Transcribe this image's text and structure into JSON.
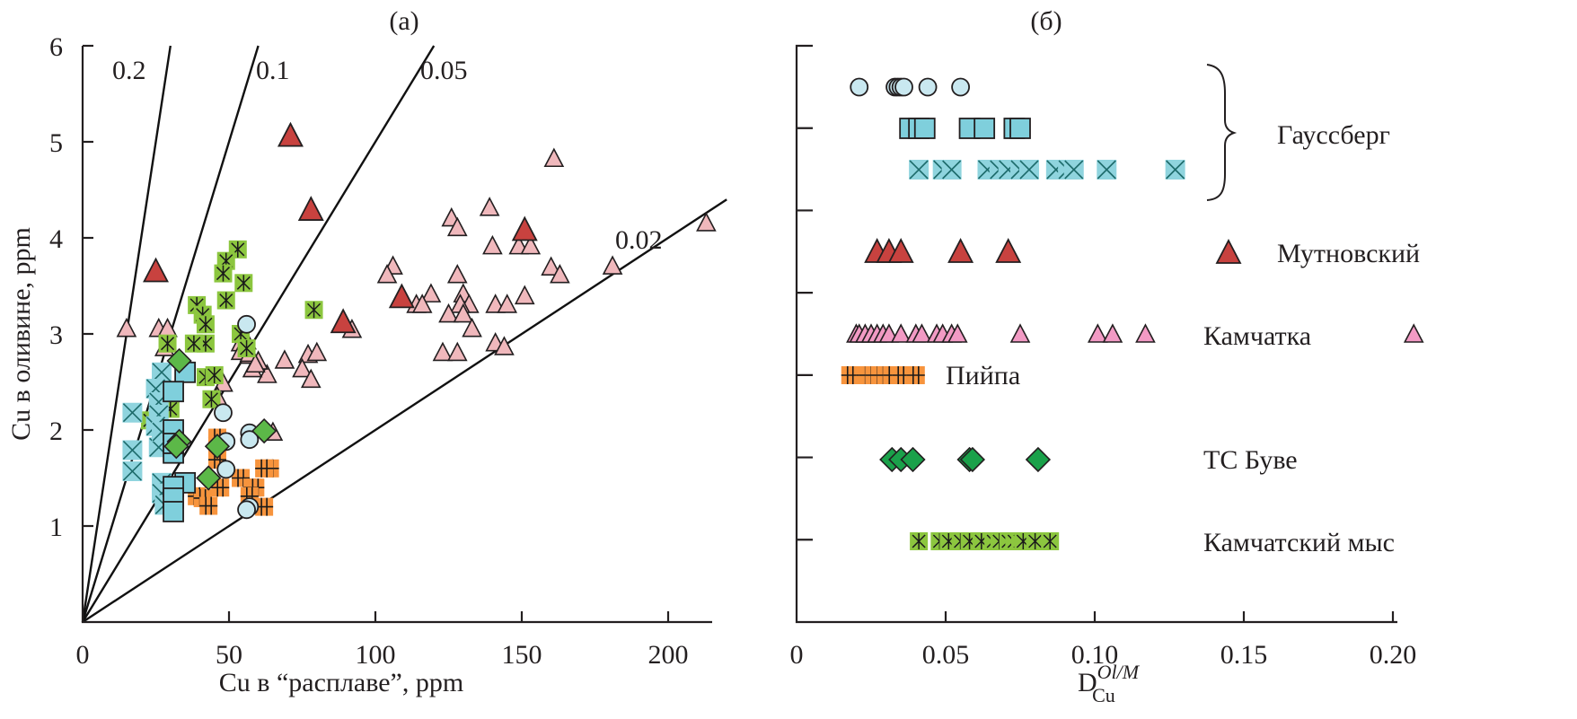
{
  "chart_data": [
    {
      "panel_label": "(a)",
      "type": "scatter",
      "xlabel": "Cu в “расплаве”, ppm",
      "ylabel": "Cu в оливине, ppm",
      "xlim": [
        0,
        215
      ],
      "ylim": [
        0,
        6
      ],
      "xticks": [
        0,
        50,
        100,
        150,
        200
      ],
      "yticks": [
        1,
        2,
        3,
        4,
        5,
        6
      ],
      "xtick_labels": [
        "0",
        "50",
        "100",
        "150",
        "200"
      ],
      "ytick_labels": [
        "1",
        "2",
        "3",
        "4",
        "5",
        "6"
      ],
      "grid": false,
      "reference_lines": [
        {
          "slope": 0.2,
          "label": "0.2",
          "x_end": 30
        },
        {
          "slope": 0.1,
          "label": "0.1",
          "x_end": 60
        },
        {
          "slope": 0.05,
          "label": "0.05",
          "x_end": 120
        },
        {
          "slope": 0.02,
          "label": "0.02",
          "x_end": 220
        }
      ],
      "series": [
        {
          "name": "Камчатка",
          "marker": "triangle",
          "color": "#f0b8bc",
          "points": [
            [
              161,
              4.82
            ],
            [
              139,
              4.31
            ],
            [
              126,
              4.2
            ],
            [
              128,
              4.1
            ],
            [
              140,
              3.91
            ],
            [
              149,
              3.91
            ],
            [
              153,
              3.91
            ],
            [
              106,
              3.7
            ],
            [
              104,
              3.61
            ],
            [
              128,
              3.61
            ],
            [
              160,
              3.69
            ],
            [
              163,
              3.61
            ],
            [
              181,
              3.7
            ],
            [
              213,
              4.15
            ],
            [
              119,
              3.41
            ],
            [
              114,
              3.3
            ],
            [
              116,
              3.3
            ],
            [
              130,
              3.41
            ],
            [
              132,
              3.3
            ],
            [
              129,
              3.3
            ],
            [
              125,
              3.2
            ],
            [
              130,
              3.2
            ],
            [
              141,
              3.3
            ],
            [
              145,
              3.3
            ],
            [
              151,
              3.39
            ],
            [
              133,
              3.05
            ],
            [
              92,
              3.04
            ],
            [
              123,
              2.8
            ],
            [
              128,
              2.8
            ],
            [
              141,
              2.9
            ],
            [
              144,
              2.86
            ],
            [
              69,
              2.72
            ],
            [
              77,
              2.78
            ],
            [
              80,
              2.8
            ],
            [
              75,
              2.63
            ],
            [
              78,
              2.52
            ],
            [
              63,
              2.57
            ],
            [
              60,
              2.71
            ],
            [
              58,
              2.63
            ],
            [
              54,
              2.9
            ],
            [
              57,
              2.77
            ],
            [
              15,
              3.05
            ],
            [
              26,
              3.05
            ],
            [
              29,
              3.05
            ],
            [
              28,
              2.85
            ],
            [
              56,
              2.92
            ],
            [
              54,
              2.81
            ],
            [
              57,
              2.79
            ],
            [
              59,
              2.68
            ],
            [
              48,
              2.48
            ],
            [
              46,
              2.34
            ],
            [
              65,
              1.97
            ]
          ]
        },
        {
          "name": "Мутновский",
          "marker": "triangle-large",
          "color": "#c8423f",
          "points": [
            [
              71,
              5.05
            ],
            [
              78,
              4.28
            ],
            [
              25,
              3.64
            ],
            [
              151,
              4.07
            ],
            [
              109,
              3.37
            ],
            [
              89,
              3.11
            ]
          ]
        },
        {
          "name": "Камчатский мыс",
          "marker": "asterisk-square",
          "color": "#8cc63f",
          "points": [
            [
              53,
              3.88
            ],
            [
              49,
              3.76
            ],
            [
              48,
              3.63
            ],
            [
              55,
              3.53
            ],
            [
              49,
              3.35
            ],
            [
              79,
              3.25
            ],
            [
              39,
              3.3
            ],
            [
              41,
              3.2
            ],
            [
              42,
              3.1
            ],
            [
              29,
              2.9
            ],
            [
              42,
              2.9
            ],
            [
              38,
              2.9
            ],
            [
              42,
              2.55
            ],
            [
              45,
              2.57
            ],
            [
              44,
              2.32
            ],
            [
              23,
              2.1
            ],
            [
              30,
              2.22
            ],
            [
              54,
              3.0
            ],
            [
              56,
              2.85
            ]
          ]
        },
        {
          "name": "Гауссберг (круги)",
          "marker": "circle",
          "color": "#c9e8f0",
          "points": [
            [
              56,
              3.1
            ],
            [
              48,
              2.18
            ],
            [
              57,
              1.97
            ],
            [
              57,
              1.9
            ],
            [
              49,
              1.88
            ],
            [
              49,
              1.59
            ],
            [
              57,
              1.2
            ],
            [
              56,
              1.17
            ]
          ]
        },
        {
          "name": "Гауссберг (квадраты)",
          "marker": "square",
          "color": "#7fcfdc",
          "points": [
            [
              35,
              2.6
            ],
            [
              31,
              2.4
            ],
            [
              31,
              2.0
            ],
            [
              31,
              1.76
            ],
            [
              35,
              1.45
            ],
            [
              31,
              1.41
            ],
            [
              31,
              1.29
            ],
            [
              31,
              1.15
            ],
            [
              31,
              1.86
            ]
          ]
        },
        {
          "name": "Гауссберг (крестики)",
          "marker": "x-square",
          "color": "#8fd4de",
          "points": [
            [
              27,
              2.6
            ],
            [
              25,
              2.43
            ],
            [
              26,
              2.29
            ],
            [
              17,
              2.18
            ],
            [
              26,
              2.16
            ],
            [
              25,
              2.04
            ],
            [
              17,
              1.79
            ],
            [
              26,
              1.82
            ],
            [
              17,
              1.57
            ],
            [
              27,
              1.98
            ],
            [
              27,
              1.45
            ],
            [
              27,
              1.34
            ],
            [
              28,
              1.22
            ]
          ]
        },
        {
          "name": "ТС Буве",
          "marker": "diamond",
          "color": "#5cb848",
          "points": [
            [
              33,
              2.72
            ],
            [
              33,
              1.88
            ],
            [
              32,
              1.83
            ],
            [
              46,
              1.83
            ],
            [
              62,
              1.99
            ],
            [
              43,
              1.5
            ]
          ]
        },
        {
          "name": "Пийпа",
          "marker": "plus-square",
          "color": "#f7943d",
          "points": [
            [
              46,
              1.92
            ],
            [
              46,
              1.85
            ],
            [
              46,
              1.69
            ],
            [
              64,
              1.6
            ],
            [
              62,
              1.6
            ],
            [
              54,
              1.5
            ],
            [
              47,
              1.4
            ],
            [
              58,
              1.4
            ],
            [
              59,
              1.4
            ],
            [
              39,
              1.31
            ],
            [
              41,
              1.29
            ],
            [
              43,
              1.21
            ],
            [
              57,
              1.31
            ],
            [
              62,
              1.2
            ]
          ]
        }
      ]
    },
    {
      "panel_label": "(б)",
      "type": "scatter",
      "xlabel_main": "D",
      "xlabel_sub": "Cu",
      "xlabel_sup": "Ol/M",
      "xlim": [
        0,
        0.2
      ],
      "xticks": [
        0,
        0.05,
        0.1,
        0.15,
        0.2
      ],
      "xtick_labels": [
        "0",
        "0.05",
        "0.10",
        "0.15",
        "0.20"
      ],
      "grid": false,
      "group_brace_label": "Гауссберг",
      "rows": [
        {
          "name": "Гауссберг (круги)",
          "marker": "circle",
          "color": "#c9e8f0",
          "label": "",
          "values": [
            0.021,
            0.033,
            0.034,
            0.035,
            0.036,
            0.044,
            0.055
          ]
        },
        {
          "name": "Гауссберг (квадраты)",
          "marker": "square",
          "color": "#7fcfdc",
          "label": "",
          "values": [
            0.038,
            0.041,
            0.043,
            0.058,
            0.063,
            0.073,
            0.075
          ]
        },
        {
          "name": "Гауссберг (крестики)",
          "marker": "x-square",
          "color": "#8fd4de",
          "label": "",
          "values": [
            0.041,
            0.049,
            0.052,
            0.064,
            0.068,
            0.071,
            0.075,
            0.078,
            0.087,
            0.091,
            0.093,
            0.104,
            0.127
          ]
        },
        {
          "name": "Мутновский",
          "marker": "triangle-large",
          "color": "#c8423f",
          "label": "Мутновский",
          "values": [
            0.027,
            0.031,
            0.035,
            0.055,
            0.071
          ]
        },
        {
          "name": "Камчатка",
          "marker": "triangle",
          "color": "#f29ac4",
          "label": "Камчатка",
          "values": [
            0.02,
            0.021,
            0.023,
            0.025,
            0.027,
            0.029,
            0.031,
            0.035,
            0.04,
            0.042,
            0.047,
            0.049,
            0.052,
            0.054,
            0.075,
            0.101,
            0.106,
            0.117,
            0.207
          ]
        },
        {
          "name": "Пийпа",
          "marker": "plus-square",
          "color": "#f7943d",
          "label": "Пийпа",
          "values": [
            0.018,
            0.023,
            0.024,
            0.026,
            0.028,
            0.03,
            0.032,
            0.035,
            0.04
          ]
        },
        {
          "name": "ТС Буве",
          "marker": "diamond",
          "color": "#1aa14a",
          "label": "ТС Буве",
          "values": [
            0.032,
            0.035,
            0.039,
            0.058,
            0.059,
            0.081
          ]
        },
        {
          "name": "Камчатский мыс",
          "marker": "asterisk-square",
          "color": "#8cc63f",
          "label": "Камчатский мыс",
          "values": [
            0.041,
            0.048,
            0.051,
            0.055,
            0.058,
            0.062,
            0.066,
            0.068,
            0.071,
            0.073,
            0.075,
            0.076,
            0.08,
            0.085
          ]
        }
      ]
    }
  ]
}
